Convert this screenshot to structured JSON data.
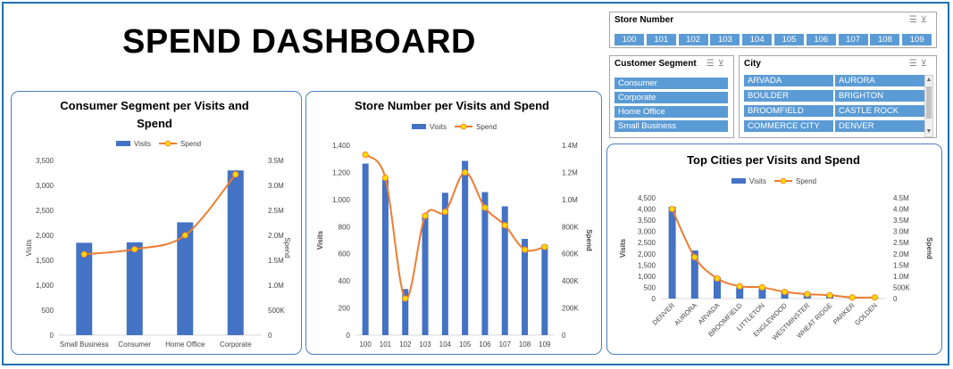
{
  "dashboard_title": "SPEND DASHBOARD",
  "colors": {
    "bar": "#4472c4",
    "line": "#ed7d31",
    "marker": "#ffd700",
    "chip": "#5b9bd5",
    "border": "#4a7fc1"
  },
  "slicers": {
    "store_number": {
      "title": "Store Number",
      "items": [
        "100",
        "101",
        "102",
        "103",
        "104",
        "105",
        "106",
        "107",
        "108",
        "109"
      ]
    },
    "customer_segment": {
      "title": "Customer Segment",
      "items": [
        "Consumer",
        "Corporate",
        "Home Office",
        "Small Business"
      ]
    },
    "city": {
      "title": "City",
      "items": [
        "ARVADA",
        "AURORA",
        "BOULDER",
        "BRIGHTON",
        "BROOMFIELD",
        "CASTLE ROCK",
        "COMMERCE CITY",
        "DENVER"
      ]
    },
    "icons": [
      "multi-select-icon",
      "clear-filter-icon"
    ]
  },
  "chart_data": [
    {
      "type": "bar",
      "title": "Consumer Segment per Visits and Spend",
      "xlabel": "",
      "ylabel": "Visits",
      "y2label": "Spend",
      "categories": [
        "Small Business",
        "Consumer",
        "Home Office",
        "Corporate"
      ],
      "series": [
        {
          "name": "Visits",
          "type": "bar",
          "axis": "left",
          "values": [
            1850,
            1860,
            2260,
            3300
          ]
        },
        {
          "name": "Spend",
          "type": "line",
          "axis": "right",
          "values": [
            1620000,
            1720000,
            2000000,
            3220000
          ]
        }
      ],
      "ylim": [
        0,
        3500
      ],
      "y2lim": [
        0,
        3500000
      ],
      "yticks": [
        "0",
        "500",
        "1,000",
        "1,500",
        "2,000",
        "2,500",
        "3,000",
        "3,500"
      ],
      "y2ticks": [
        "0",
        "500K",
        "1.0M",
        "1.5M",
        "2.0M",
        "2.5M",
        "3.0M",
        "3.5M"
      ],
      "legend": "top"
    },
    {
      "type": "bar",
      "title": "Store Number per Visits and Spend",
      "xlabel": "",
      "ylabel": "Visits",
      "y2label": "Spend",
      "categories": [
        "100",
        "101",
        "102",
        "103",
        "104",
        "105",
        "106",
        "107",
        "108",
        "109"
      ],
      "series": [
        {
          "name": "Visits",
          "type": "bar",
          "axis": "left",
          "values": [
            1265,
            1145,
            340,
            895,
            1050,
            1285,
            1055,
            950,
            710,
            665
          ]
        },
        {
          "name": "Spend",
          "type": "line",
          "axis": "right",
          "values": [
            1330000,
            1160000,
            270000,
            880000,
            910000,
            1200000,
            940000,
            810000,
            630000,
            650000
          ]
        }
      ],
      "ylim": [
        0,
        1400
      ],
      "y2lim": [
        0,
        1400000
      ],
      "yticks": [
        "0",
        "200",
        "400",
        "600",
        "800",
        "1,000",
        "1,200",
        "1,400"
      ],
      "y2ticks": [
        "0",
        "200K",
        "400K",
        "600K",
        "800K",
        "1.0M",
        "1.2M",
        "1.4M"
      ],
      "legend": "top"
    },
    {
      "type": "bar",
      "title": "Top Cities per Visits and Spend",
      "xlabel": "",
      "ylabel": "Visits",
      "y2label": "Spend",
      "categories": [
        "DENVER",
        "AURORA",
        "ARVADA",
        "BROOMFIELD",
        "LITTLETON",
        "ENGLEWOOD",
        "WESTMINSTER",
        "WHEAT RIDGE",
        "PARKER",
        "GOLDEN"
      ],
      "series": [
        {
          "name": "Visits",
          "type": "bar",
          "axis": "left",
          "values": [
            4100,
            2150,
            950,
            500,
            450,
            350,
            250,
            200,
            50,
            50
          ]
        },
        {
          "name": "Spend",
          "type": "line",
          "axis": "right",
          "values": [
            4000000,
            1850000,
            900000,
            550000,
            500000,
            300000,
            200000,
            150000,
            50000,
            50000
          ]
        }
      ],
      "ylim": [
        0,
        4500
      ],
      "y2lim": [
        0,
        4500000
      ],
      "yticks": [
        "0",
        "500",
        "1,000",
        "1,500",
        "2,000",
        "2,500",
        "3,000",
        "3,500",
        "4,000",
        "4,500"
      ],
      "y2ticks": [
        "0",
        "500K",
        "1.0M",
        "1.5M",
        "2.0M",
        "2.5M",
        "3.0M",
        "3.5M",
        "4.0M",
        "4.5M"
      ],
      "legend": "top"
    }
  ]
}
